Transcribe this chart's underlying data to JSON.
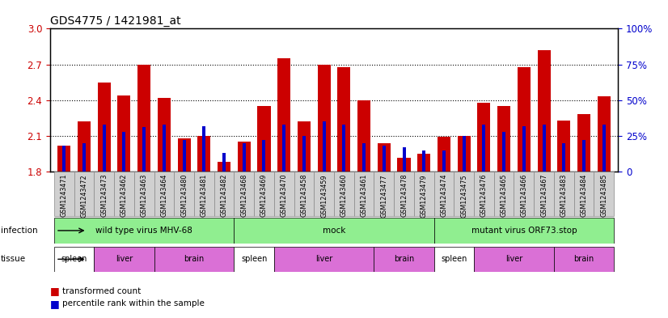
{
  "title": "GDS4775 / 1421981_at",
  "samples": [
    "GSM1243471",
    "GSM1243472",
    "GSM1243473",
    "GSM1243462",
    "GSM1243463",
    "GSM1243464",
    "GSM1243480",
    "GSM1243481",
    "GSM1243482",
    "GSM1243468",
    "GSM1243469",
    "GSM1243470",
    "GSM1243458",
    "GSM1243459",
    "GSM1243460",
    "GSM1243461",
    "GSM1243477",
    "GSM1243478",
    "GSM1243479",
    "GSM1243474",
    "GSM1243475",
    "GSM1243476",
    "GSM1243465",
    "GSM1243466",
    "GSM1243467",
    "GSM1243483",
    "GSM1243484",
    "GSM1243485"
  ],
  "transformed_count": [
    2.02,
    2.22,
    2.55,
    2.44,
    2.7,
    2.42,
    2.08,
    2.1,
    1.88,
    2.05,
    2.35,
    2.75,
    2.22,
    2.7,
    2.68,
    2.4,
    2.04,
    1.92,
    1.95,
    2.09,
    2.1,
    2.38,
    2.35,
    2.68,
    2.82,
    2.23,
    2.28,
    2.43
  ],
  "percentile_rank": [
    18,
    20,
    33,
    28,
    31,
    33,
    22,
    32,
    13,
    20,
    22,
    33,
    25,
    35,
    33,
    20,
    18,
    17,
    15,
    15,
    25,
    33,
    28,
    32,
    33,
    20,
    22,
    33
  ],
  "ylim_left": [
    1.8,
    3.0
  ],
  "ylim_right": [
    0,
    100
  ],
  "yticks_left": [
    1.8,
    2.1,
    2.4,
    2.7,
    3.0
  ],
  "yticks_right": [
    0,
    25,
    50,
    75,
    100
  ],
  "bar_color_red": "#cc0000",
  "bar_color_blue": "#0000cc",
  "left_axis_color": "#cc0000",
  "right_axis_color": "#0000cc",
  "bg_color": "#ffffff",
  "tick_bg_color": "#d0d0d0",
  "infection_color": "#90ee90",
  "spleen_color": "#ffffff",
  "liver_color": "#da70d6",
  "brain_color": "#da70d6",
  "infection_groups": [
    {
      "label": "wild type virus MHV-68",
      "start": 0,
      "end": 8
    },
    {
      "label": "mock",
      "start": 9,
      "end": 18
    },
    {
      "label": "mutant virus ORF73.stop",
      "start": 19,
      "end": 27
    }
  ],
  "tissue_groups": [
    {
      "label": "spleen",
      "start": 0,
      "end": 1,
      "color": "#ffffff"
    },
    {
      "label": "liver",
      "start": 2,
      "end": 4,
      "color": "#da70d6"
    },
    {
      "label": "brain",
      "start": 5,
      "end": 8,
      "color": "#da70d6"
    },
    {
      "label": "spleen",
      "start": 9,
      "end": 10,
      "color": "#ffffff"
    },
    {
      "label": "liver",
      "start": 11,
      "end": 15,
      "color": "#da70d6"
    },
    {
      "label": "brain",
      "start": 16,
      "end": 18,
      "color": "#da70d6"
    },
    {
      "label": "spleen",
      "start": 19,
      "end": 20,
      "color": "#ffffff"
    },
    {
      "label": "liver",
      "start": 21,
      "end": 24,
      "color": "#da70d6"
    },
    {
      "label": "brain",
      "start": 25,
      "end": 27,
      "color": "#da70d6"
    }
  ]
}
